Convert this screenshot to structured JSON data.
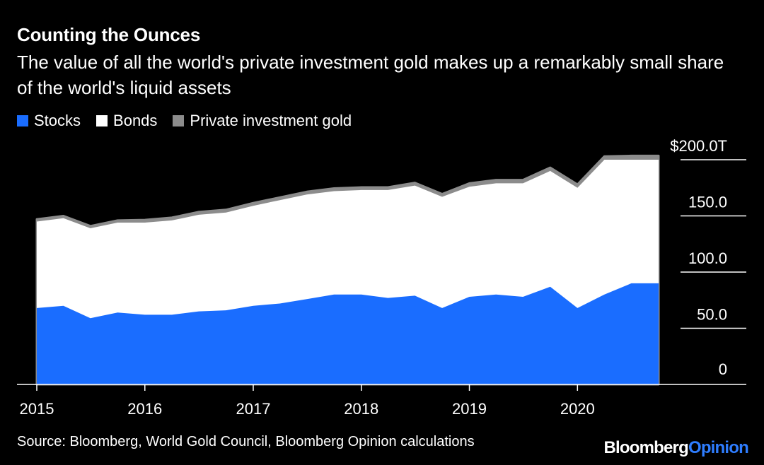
{
  "header": {
    "title": "Counting the Ounces",
    "subtitle": "The value of all the world's private investment gold makes up a remarkably small share of the world's liquid assets"
  },
  "legend": [
    {
      "label": "Stocks",
      "color": "#1a6dff"
    },
    {
      "label": "Bonds",
      "color": "#ffffff"
    },
    {
      "label": "Private investment gold",
      "color": "#8c8c8c"
    }
  ],
  "footer": {
    "source": "Source: Bloomberg, World Gold Council, Bloomberg Opinion calculations",
    "brand_main": "Bloomberg",
    "brand_accent": "Opinion"
  },
  "chart_data": {
    "type": "area",
    "stacked": true,
    "x_dates": [
      "2015-01-01",
      "2015-04-01",
      "2015-07-01",
      "2015-10-01",
      "2016-01-01",
      "2016-04-01",
      "2016-07-01",
      "2016-10-01",
      "2017-01-01",
      "2017-04-01",
      "2017-07-01",
      "2017-10-01",
      "2018-01-01",
      "2018-04-01",
      "2018-07-01",
      "2018-10-01",
      "2019-01-01",
      "2019-04-01",
      "2019-07-01",
      "2019-10-01",
      "2020-01-01",
      "2020-04-01",
      "2020-07-01",
      "2020-10-01"
    ],
    "series": [
      {
        "name": "Stocks",
        "color": "#1a6dff",
        "values": [
          68,
          70,
          59,
          64,
          62,
          62,
          65,
          66,
          70,
          72,
          76,
          80,
          80,
          77,
          79,
          68,
          78,
          80,
          78,
          87,
          68,
          80,
          90,
          90
        ]
      },
      {
        "name": "Bonds",
        "color": "#ffffff",
        "values": [
          77,
          78,
          80,
          80,
          82,
          84,
          86,
          87,
          89,
          92,
          93,
          92,
          93,
          96,
          98,
          99,
          98,
          99,
          101,
          103,
          107,
          120,
          110,
          110
        ]
      },
      {
        "name": "Private investment gold",
        "color": "#8c8c8c",
        "values": [
          2,
          2,
          2,
          2,
          2.5,
          2.5,
          2.5,
          2.5,
          2.5,
          2.5,
          2.5,
          2.5,
          2.5,
          2.5,
          2.5,
          2.5,
          3,
          3,
          3,
          3,
          3,
          3,
          3.5,
          3.5
        ]
      }
    ],
    "x_ticks": [
      {
        "date": "2015-01-01",
        "label": "2015"
      },
      {
        "date": "2016-01-01",
        "label": "2016"
      },
      {
        "date": "2017-01-01",
        "label": "2017"
      },
      {
        "date": "2018-01-01",
        "label": "2018"
      },
      {
        "date": "2019-01-01",
        "label": "2019"
      },
      {
        "date": "2020-01-01",
        "label": "2020"
      }
    ],
    "x_domain": [
      "2015-01-01",
      "2020-10-01"
    ],
    "y_ticks": [
      {
        "value": 0,
        "label": "0"
      },
      {
        "value": 50,
        "label": "50.0"
      },
      {
        "value": 100,
        "label": "100.0"
      },
      {
        "value": 150,
        "label": "150.0"
      },
      {
        "value": 200,
        "label": "$200.0T"
      }
    ],
    "ylim": [
      0,
      200
    ],
    "y_axis_side": "right"
  }
}
